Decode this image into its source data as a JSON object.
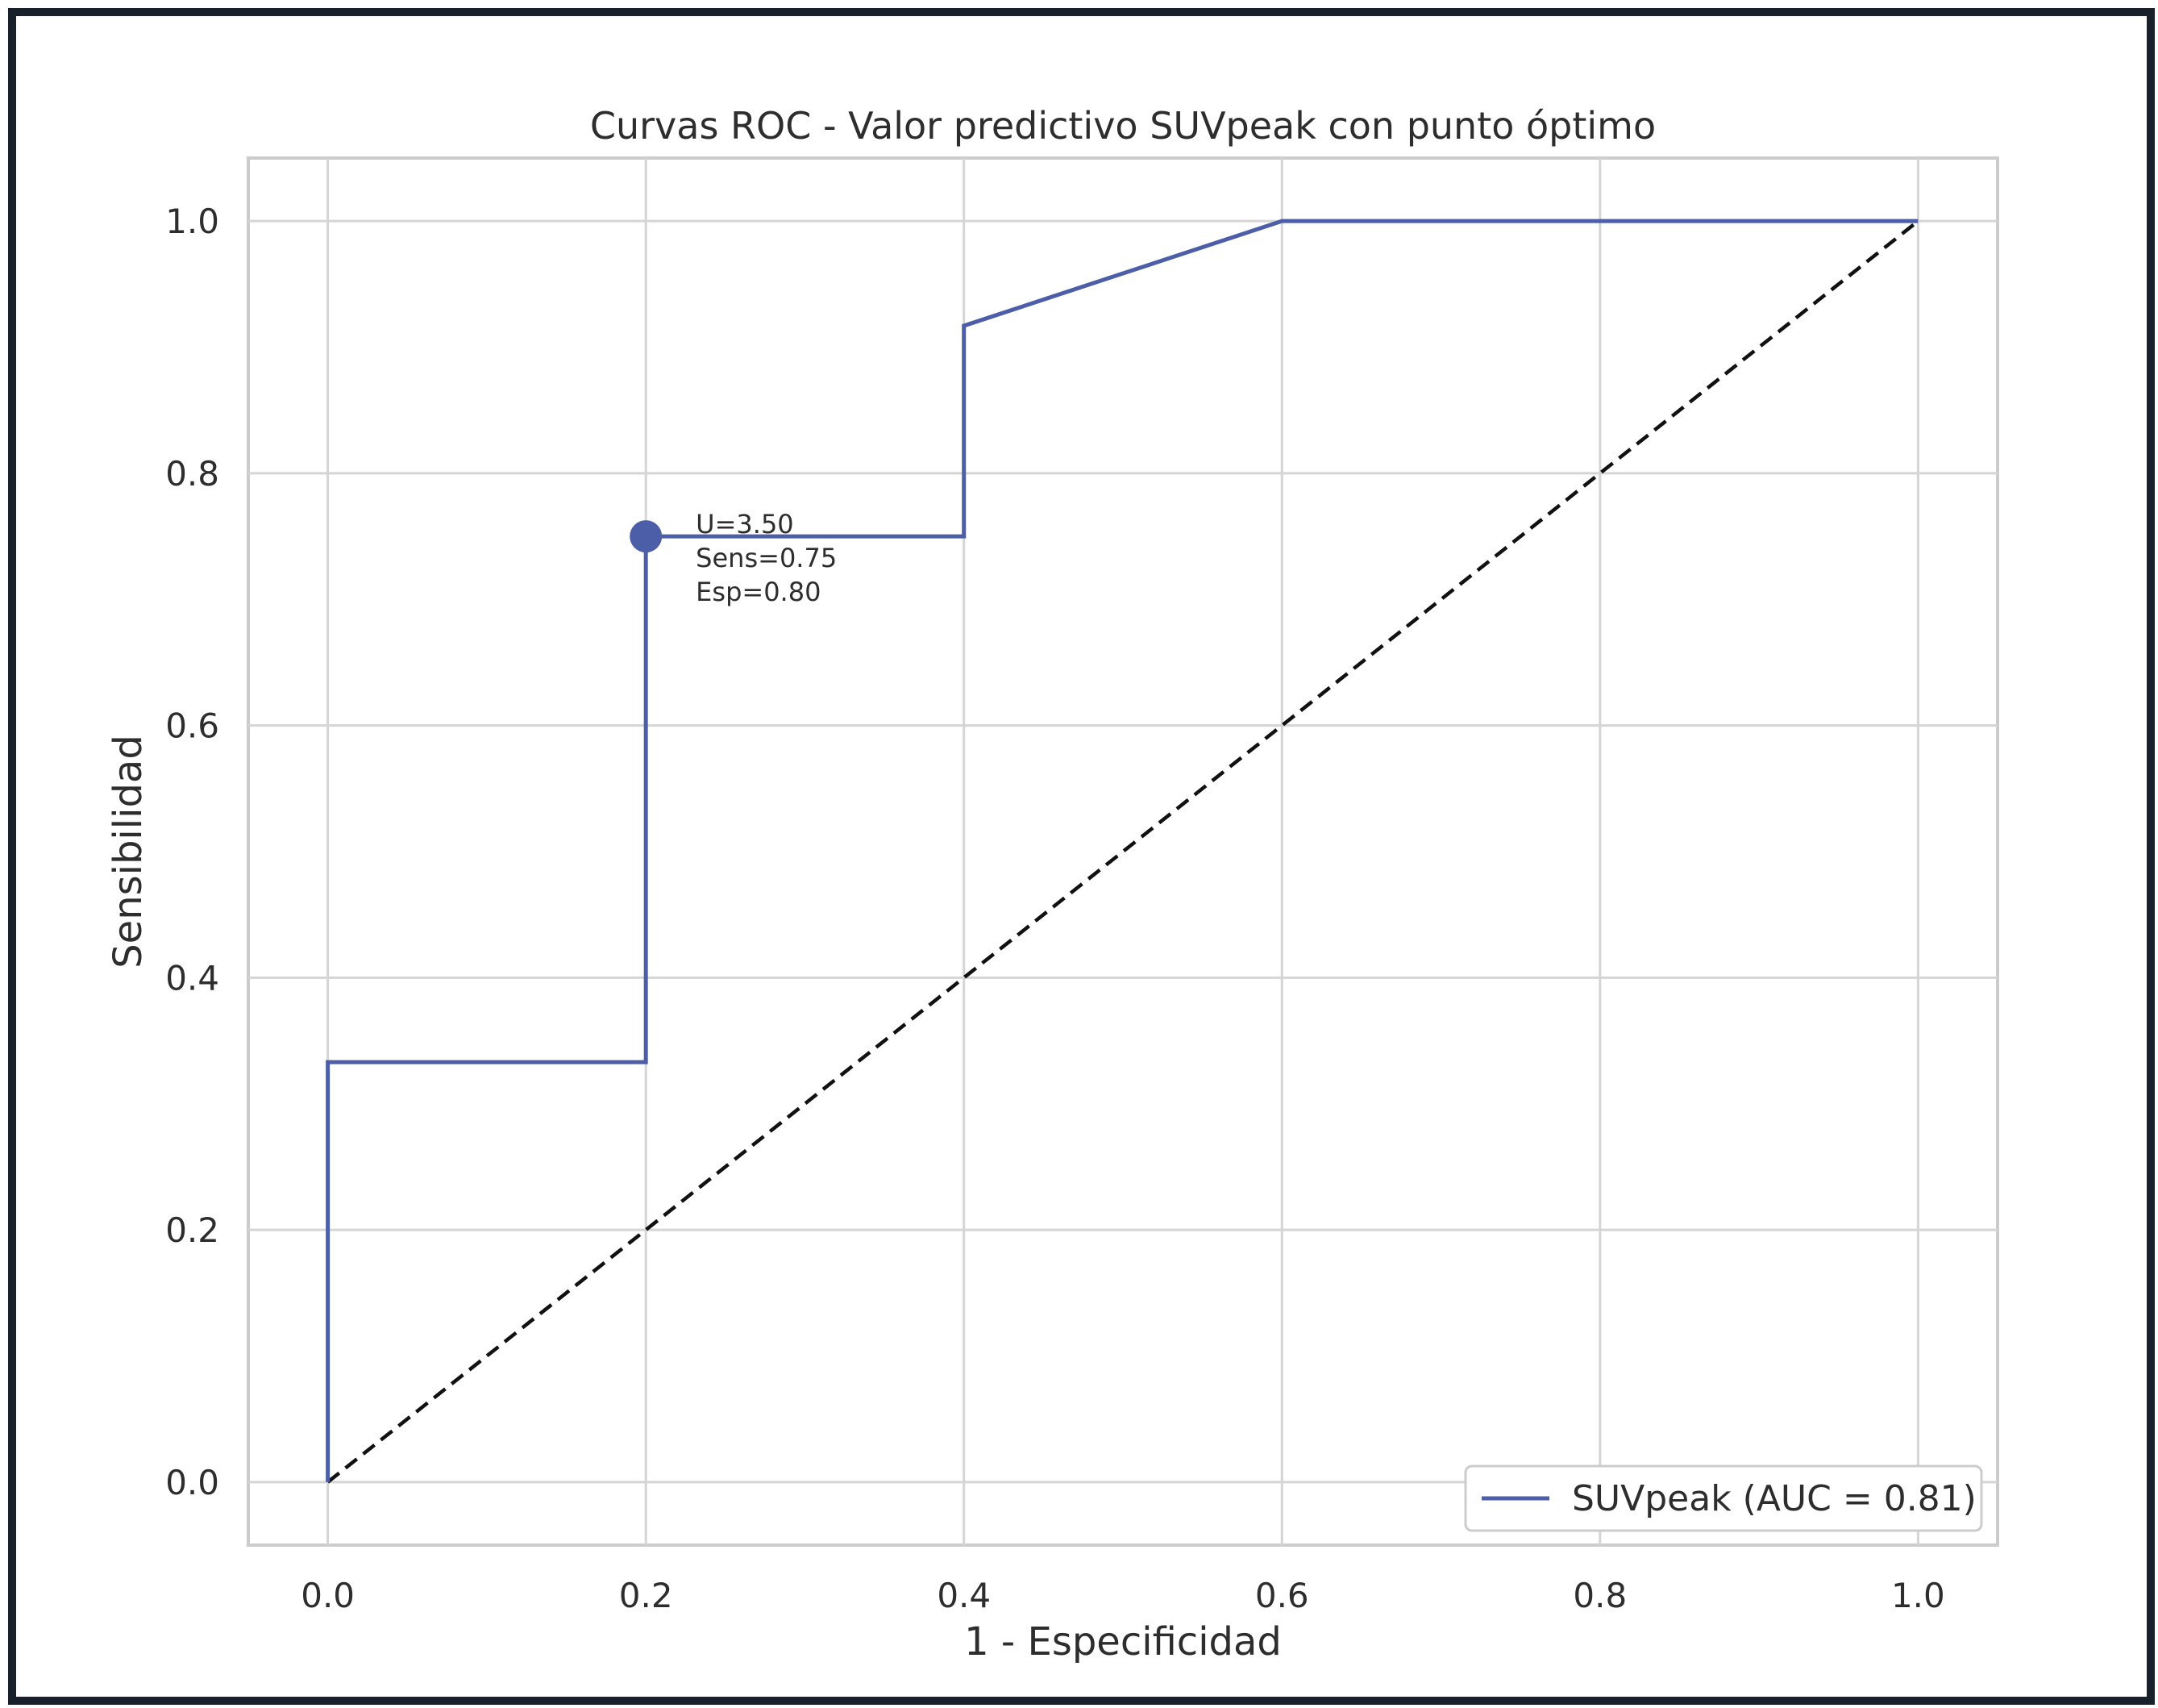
{
  "chart_data": {
    "type": "line",
    "title": "Curvas ROC - Valor predictivo SUVpeak con punto óptimo",
    "xlabel": "1 - Especificidad",
    "ylabel": "Sensibilidad",
    "xlim": [
      -0.05,
      1.05
    ],
    "ylim": [
      -0.05,
      1.05
    ],
    "xticks": [
      "0.0",
      "0.2",
      "0.4",
      "0.6",
      "0.8",
      "1.0"
    ],
    "yticks": [
      "0.0",
      "0.2",
      "0.4",
      "0.6",
      "0.8",
      "1.0"
    ],
    "grid": true,
    "legend_position": "lower-right",
    "series": [
      {
        "name": "SUVpeak (AUC = 0.81)",
        "color": "#4c5ea8",
        "x": [
          0.0,
          0.0,
          0.2,
          0.2,
          0.4,
          0.4,
          0.6,
          1.0
        ],
        "y": [
          0.0,
          0.333,
          0.333,
          0.75,
          0.75,
          0.917,
          1.0,
          1.0
        ]
      }
    ],
    "reference_line": {
      "x": [
        0,
        1
      ],
      "y": [
        0,
        1
      ],
      "color": "#111111",
      "style": "dashed"
    },
    "optimal_point": {
      "x": 0.2,
      "y": 0.75,
      "color": "#4c5ea8",
      "label_lines": [
        "U=3.50",
        "Sens=0.75",
        "Esp=0.80"
      ]
    }
  }
}
